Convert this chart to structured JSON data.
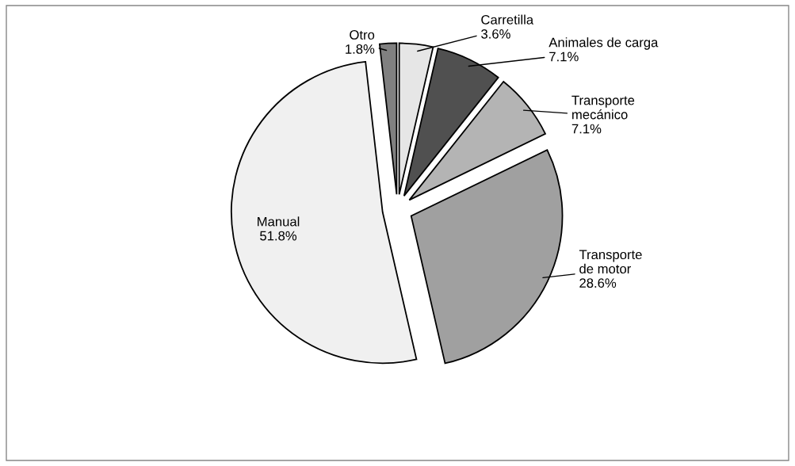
{
  "chart_data": {
    "type": "pie",
    "categories": [
      "Carretilla",
      "Animales de carga",
      "Transporte\nmecánico",
      "Transporte\nde motor",
      "Manual",
      "Otro"
    ],
    "values": [
      3.6,
      7.1,
      7.1,
      28.6,
      51.8,
      1.8
    ],
    "value_labels": [
      "3.6%",
      "7.1%",
      "7.1%",
      "28.6%",
      "51.8%",
      "1.8%"
    ],
    "colors": [
      "#e6e6e6",
      "#505050",
      "#b4b4b4",
      "#a0a0a0",
      "#f0f0f0",
      "#808080"
    ]
  }
}
